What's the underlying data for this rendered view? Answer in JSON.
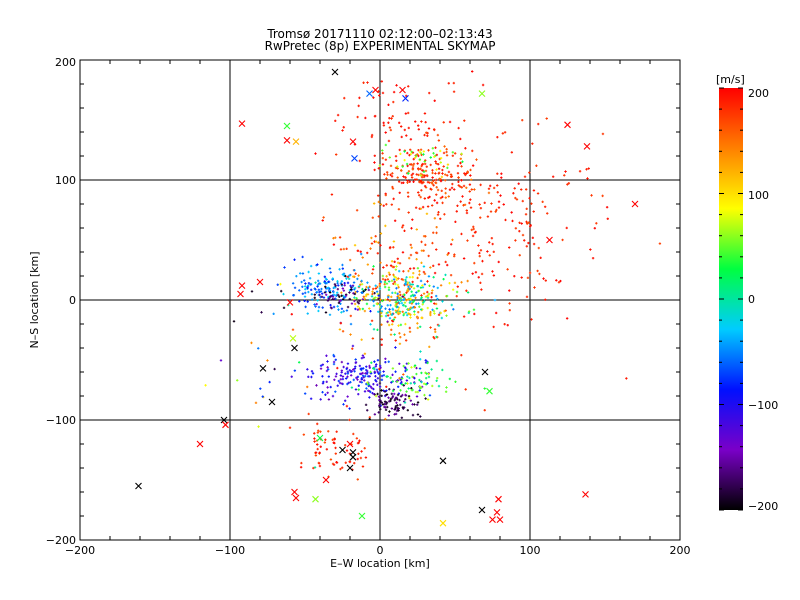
{
  "chart_data": {
    "type": "scatter",
    "title": "Tromsø 20171110 02:12:00–02:13:43",
    "subtitle": "RwPretec (8p) EXPERIMENTAL SKYMAP",
    "xlabel": "E–W location [km]",
    "ylabel": "N–S location [km]",
    "xlim": [
      -200,
      200
    ],
    "ylim": [
      -200,
      200
    ],
    "xticks": [
      "−200",
      "−100",
      "0",
      "100",
      "200"
    ],
    "yticks": [
      "−200",
      "−100",
      "0",
      "100",
      "200"
    ],
    "grid": true,
    "colorbar": {
      "label": "[m/s]",
      "range": [
        -200,
        200
      ],
      "ticks": [
        "200",
        "100",
        "0",
        "−100",
        "−200"
      ],
      "colors": [
        "#000000",
        "#7a00c8",
        "#0010ff",
        "#00ccff",
        "#00ff40",
        "#ffff00",
        "#ff8000",
        "#ff0000"
      ]
    },
    "clusters": [
      {
        "name": "north-red",
        "cx": 30,
        "cy": 105,
        "sx": 15,
        "sy": 12,
        "n": 180,
        "vmin": 150,
        "vmax": 200
      },
      {
        "name": "north-east-red",
        "cx": 65,
        "cy": 60,
        "sx": 40,
        "sy": 40,
        "n": 260,
        "vmin": 170,
        "vmax": 200
      },
      {
        "name": "central-spread",
        "cx": 10,
        "cy": 20,
        "sx": 20,
        "sy": 35,
        "n": 180,
        "vmin": 110,
        "vmax": 200
      },
      {
        "name": "central-mixed",
        "cx": 15,
        "cy": 0,
        "sx": 18,
        "sy": 12,
        "n": 260,
        "vmin": -60,
        "vmax": 150
      },
      {
        "name": "west-cyan",
        "cx": -35,
        "cy": 8,
        "sx": 15,
        "sy": 10,
        "n": 160,
        "vmin": -90,
        "vmax": -20
      },
      {
        "name": "west-darkblue",
        "cx": -25,
        "cy": 2,
        "sx": 12,
        "sy": 8,
        "n": 60,
        "vmin": -200,
        "vmax": -140
      },
      {
        "name": "south-blue",
        "cx": -12,
        "cy": -65,
        "sx": 22,
        "sy": 10,
        "n": 200,
        "vmin": -150,
        "vmax": -60
      },
      {
        "name": "south-purple",
        "cx": 10,
        "cy": -85,
        "sx": 8,
        "sy": 6,
        "n": 90,
        "vmin": -200,
        "vmax": -150
      },
      {
        "name": "south-green",
        "cx": 20,
        "cy": -68,
        "sx": 15,
        "sy": 10,
        "n": 70,
        "vmin": -10,
        "vmax": 80
      },
      {
        "name": "far-south-red",
        "cx": -30,
        "cy": -125,
        "sx": 12,
        "sy": 12,
        "n": 70,
        "vmin": 160,
        "vmax": 200
      },
      {
        "name": "north-green",
        "cx": 32,
        "cy": 118,
        "sx": 12,
        "sy": 6,
        "n": 40,
        "vmin": 20,
        "vmax": 110
      },
      {
        "name": "north-upper",
        "cx": 15,
        "cy": 150,
        "sx": 25,
        "sy": 20,
        "n": 70,
        "vmin": 180,
        "vmax": 200
      },
      {
        "name": "west-sparse",
        "cx": -60,
        "cy": -40,
        "sx": 30,
        "sy": 35,
        "n": 35,
        "vmin": -200,
        "vmax": 200
      }
    ],
    "crosses": [
      [
        -30,
        190,
        -200
      ],
      [
        -7,
        172,
        -60
      ],
      [
        15,
        175,
        200
      ],
      [
        17,
        168,
        -80
      ],
      [
        68,
        172,
        60
      ],
      [
        -92,
        147,
        200
      ],
      [
        -62,
        145,
        40
      ],
      [
        -62,
        133,
        200
      ],
      [
        -56,
        132,
        120
      ],
      [
        -18,
        132,
        200
      ],
      [
        -17,
        118,
        -70
      ],
      [
        -3,
        175,
        200
      ],
      [
        125,
        146,
        200
      ],
      [
        138,
        128,
        200
      ],
      [
        170,
        80,
        200
      ],
      [
        113,
        50,
        200
      ],
      [
        -80,
        15,
        200
      ],
      [
        -92,
        12,
        200
      ],
      [
        -93,
        5,
        200
      ],
      [
        -60,
        -2,
        200
      ],
      [
        -104,
        -100,
        -200
      ],
      [
        -78,
        -57,
        -200
      ],
      [
        -57,
        -40,
        -200
      ],
      [
        -58,
        -32,
        70
      ],
      [
        -103,
        -104,
        200
      ],
      [
        -72,
        -85,
        -200
      ],
      [
        -120,
        -120,
        200
      ],
      [
        70,
        -60,
        -200
      ],
      [
        73,
        -76,
        40
      ],
      [
        -161,
        -155,
        -200
      ],
      [
        42,
        -134,
        -200
      ],
      [
        -18,
        -131,
        -200
      ],
      [
        -20,
        -140,
        -200
      ],
      [
        -40,
        -115,
        30
      ],
      [
        -12,
        -180,
        40
      ],
      [
        -43,
        -166,
        60
      ],
      [
        -36,
        -150,
        200
      ],
      [
        -57,
        -160,
        200
      ],
      [
        -56,
        -165,
        200
      ],
      [
        68,
        -175,
        -200
      ],
      [
        75,
        -183,
        200
      ],
      [
        80,
        -183,
        200
      ],
      [
        78,
        -177,
        200
      ],
      [
        79,
        -166,
        200
      ],
      [
        137,
        -162,
        200
      ],
      [
        42,
        -186,
        100
      ],
      [
        -20,
        -120,
        200
      ],
      [
        -25,
        -125,
        -200
      ],
      [
        -18,
        -127,
        -200
      ]
    ]
  }
}
